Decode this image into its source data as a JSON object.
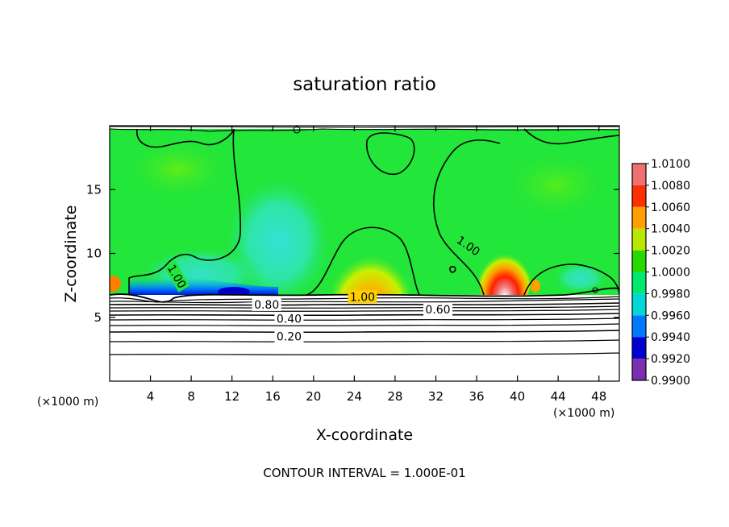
{
  "chart_data": {
    "type": "heatmap",
    "title": "saturation ratio",
    "xlabel": "X-coordinate",
    "ylabel": "Z-coordinate",
    "x_unit_left": "(×1000 m)",
    "x_unit_right": "(×1000 m)",
    "xlim": [
      0,
      50
    ],
    "ylim": [
      0,
      20
    ],
    "x_ticks": [
      4,
      8,
      12,
      16,
      20,
      24,
      28,
      32,
      36,
      40,
      44,
      48
    ],
    "x_tick_labels": [
      "4",
      "8",
      "12",
      "16",
      "20",
      "24",
      "28",
      "32",
      "36",
      "40",
      "44",
      "48"
    ],
    "y_ticks": [
      5,
      10,
      15
    ],
    "y_tick_labels": [
      "5",
      "10",
      "15"
    ],
    "colorbar": {
      "levels": [
        0.99,
        0.992,
        0.994,
        0.996,
        0.998,
        1.0,
        1.002,
        1.004,
        1.006,
        1.008,
        1.01
      ],
      "labels": [
        "0.9900",
        "0.9920",
        "0.9940",
        "0.9960",
        "0.9980",
        "1.0000",
        "1.0020",
        "1.0040",
        "1.0060",
        "1.0080",
        "1.0100"
      ],
      "colors": [
        "#7b2fb0",
        "#0000d0",
        "#0078ff",
        "#00d8d8",
        "#00e870",
        "#28d800",
        "#b8e800",
        "#ffa000",
        "#ff3000",
        "#f07070"
      ]
    },
    "contour_labels": [
      {
        "text": "1.00",
        "x": 6.6,
        "y": 8.2,
        "rot": 60
      },
      {
        "text": "1.00",
        "x": 35.2,
        "y": 10.6,
        "rot": 35
      },
      {
        "text": "1.00",
        "x": 24.8,
        "y": 6.6,
        "rot": 0
      },
      {
        "text": "0.80",
        "x": 15.4,
        "y": 6.0,
        "rot": 0
      },
      {
        "text": "0.60",
        "x": 32.2,
        "y": 5.6,
        "rot": 0
      },
      {
        "text": "0.40",
        "x": 17.6,
        "y": 4.9,
        "rot": 0
      },
      {
        "text": "0.20",
        "x": 17.6,
        "y": 3.5,
        "rot": 0
      }
    ],
    "contour_interval_label": "CONTOUR INTERVAL = 1.000E-01"
  }
}
